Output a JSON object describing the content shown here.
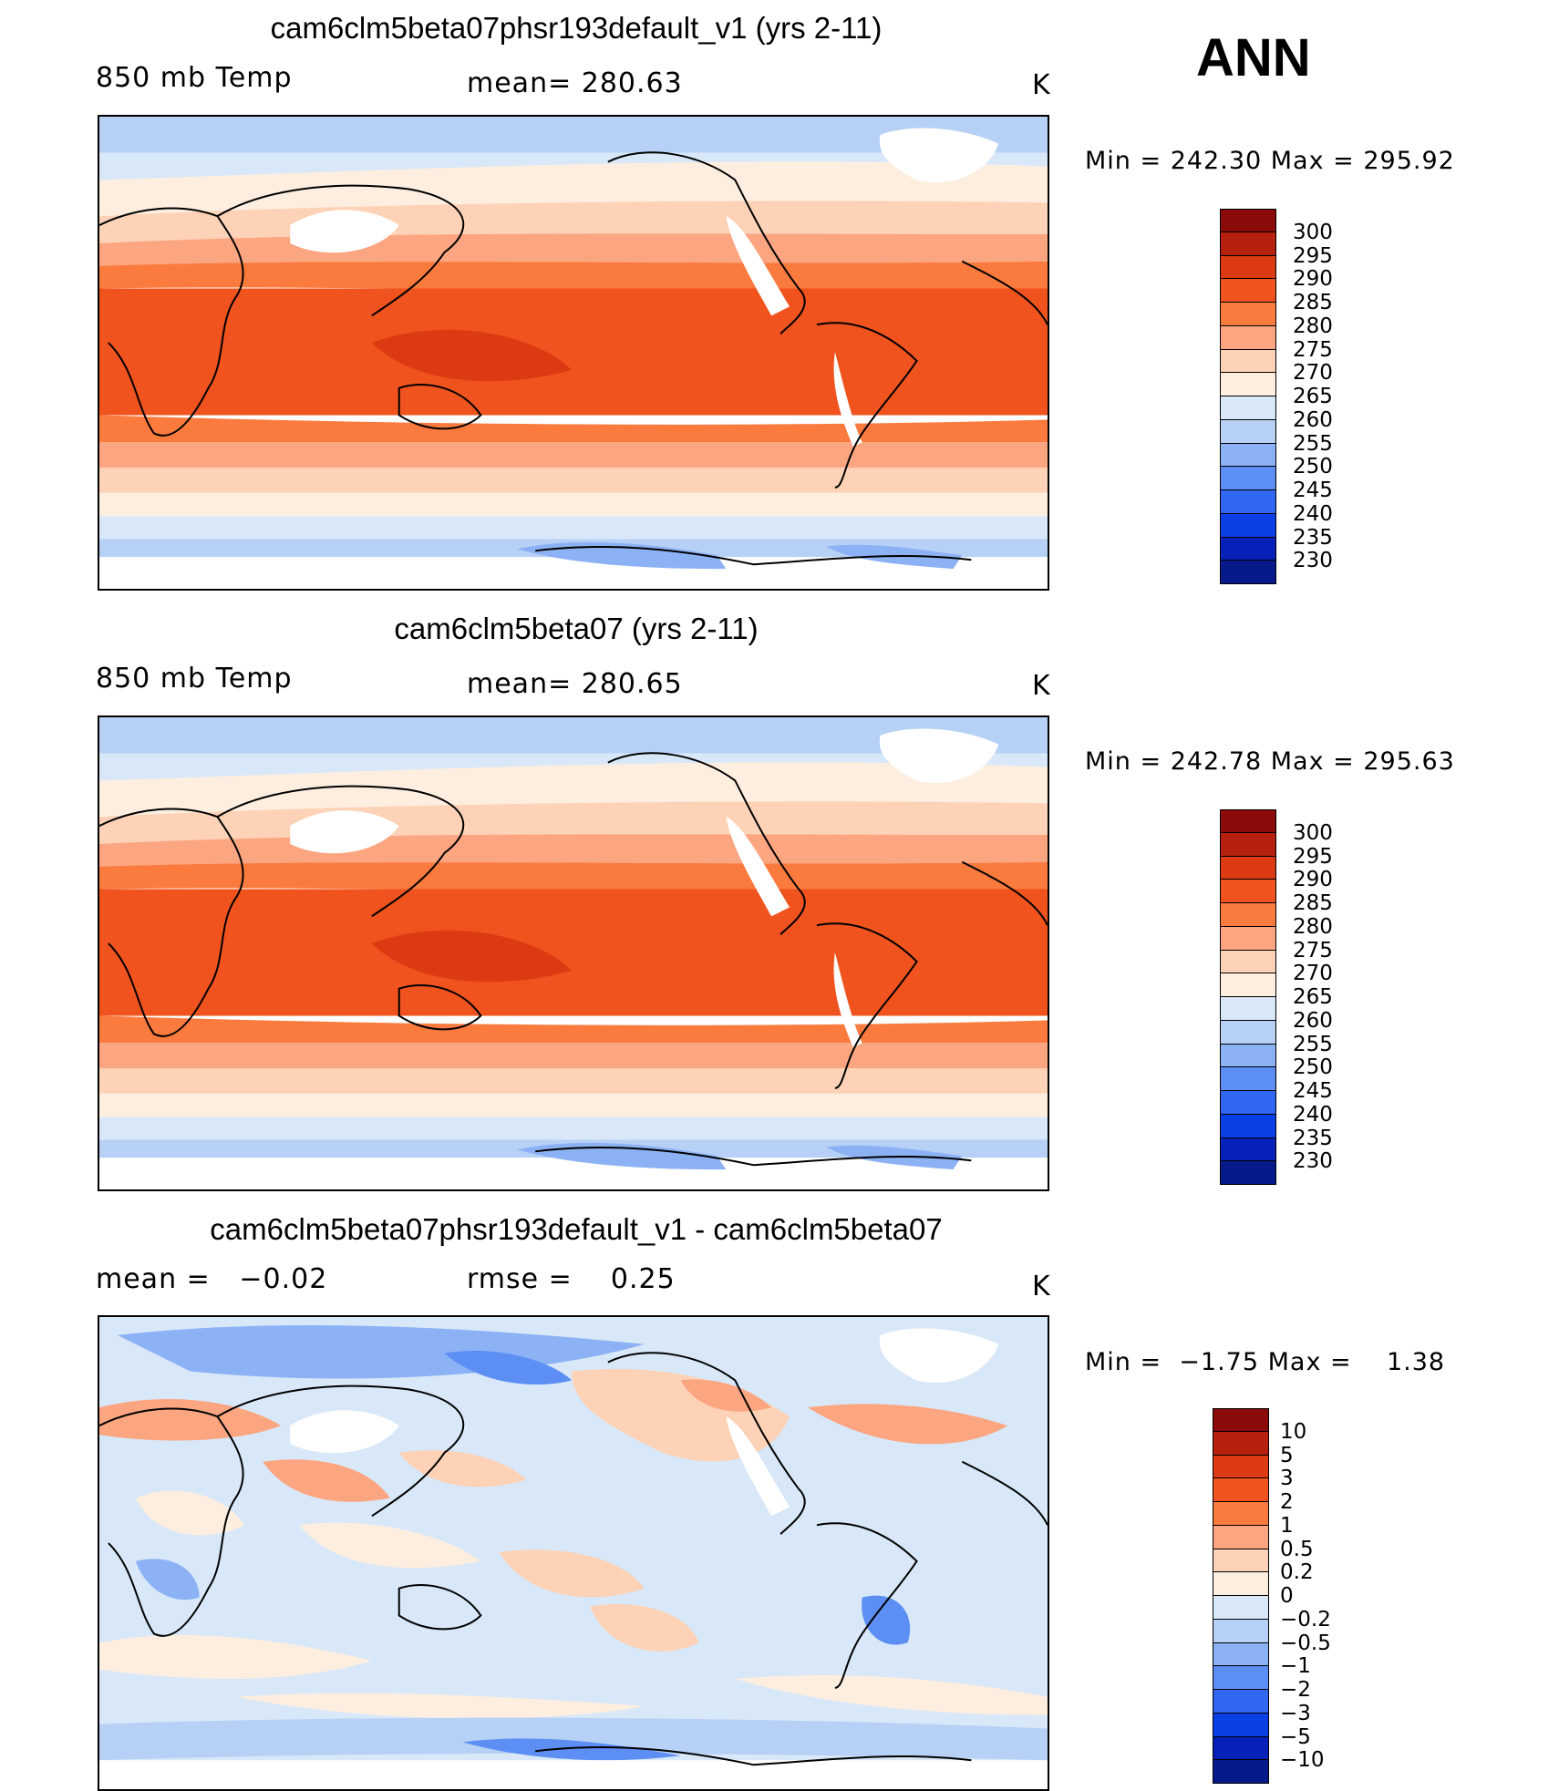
{
  "season": "ANN",
  "panels": [
    {
      "title": "cam6clm5beta07phsr193default_v1 (yrs 2-11)",
      "left_label": "850 mb Temp",
      "center_label": "mean= 280.63",
      "unit": "K",
      "min_max": "Min = 242.30 Max = 295.92",
      "field": "absolute"
    },
    {
      "title": "cam6clm5beta07 (yrs 2-11)",
      "left_label": "850 mb Temp",
      "center_label": "mean= 280.65",
      "unit": "K",
      "min_max": "Min = 242.78 Max = 295.63",
      "field": "absolute"
    },
    {
      "title": "cam6clm5beta07phsr193default_v1 - cam6clm5beta07",
      "left_label": "mean =   −0.02",
      "center_label": "rmse =    0.25",
      "unit": "K",
      "min_max": "Min =  −1.75 Max =    1.38",
      "field": "difference"
    }
  ],
  "colorbars": {
    "absolute": {
      "labels": [
        "300",
        "295",
        "290",
        "285",
        "280",
        "275",
        "270",
        "265",
        "260",
        "255",
        "250",
        "245",
        "240",
        "235",
        "230"
      ],
      "colors": [
        "#8b0a0a",
        "#b5200f",
        "#dc3a12",
        "#f0531e",
        "#fb7a3e",
        "#fca581",
        "#fdd2b6",
        "#fdeee0",
        "#d8e8f8",
        "#b6d0f6",
        "#8cb2f5",
        "#5c8ef4",
        "#2f66f2",
        "#0b3fe6",
        "#0720b8",
        "#061a8c"
      ]
    },
    "difference": {
      "labels": [
        "10",
        "5",
        "3",
        "2",
        "1",
        "0.5",
        "0.2",
        "0",
        "−0.2",
        "−0.5",
        "−1",
        "−2",
        "−3",
        "−5",
        "−10"
      ],
      "colors": [
        "#8b0a0a",
        "#b5200f",
        "#dc3a12",
        "#f0531e",
        "#fb7a3e",
        "#fca581",
        "#fdd2b6",
        "#fdeee0",
        "#d8e8f8",
        "#b6d0f6",
        "#8cb2f5",
        "#5c8ef4",
        "#2f66f2",
        "#0b3fe6",
        "#0720b8",
        "#061a8c"
      ]
    }
  },
  "map_colors": {
    "land_outline": "#000000",
    "missing": "#ffffff"
  }
}
